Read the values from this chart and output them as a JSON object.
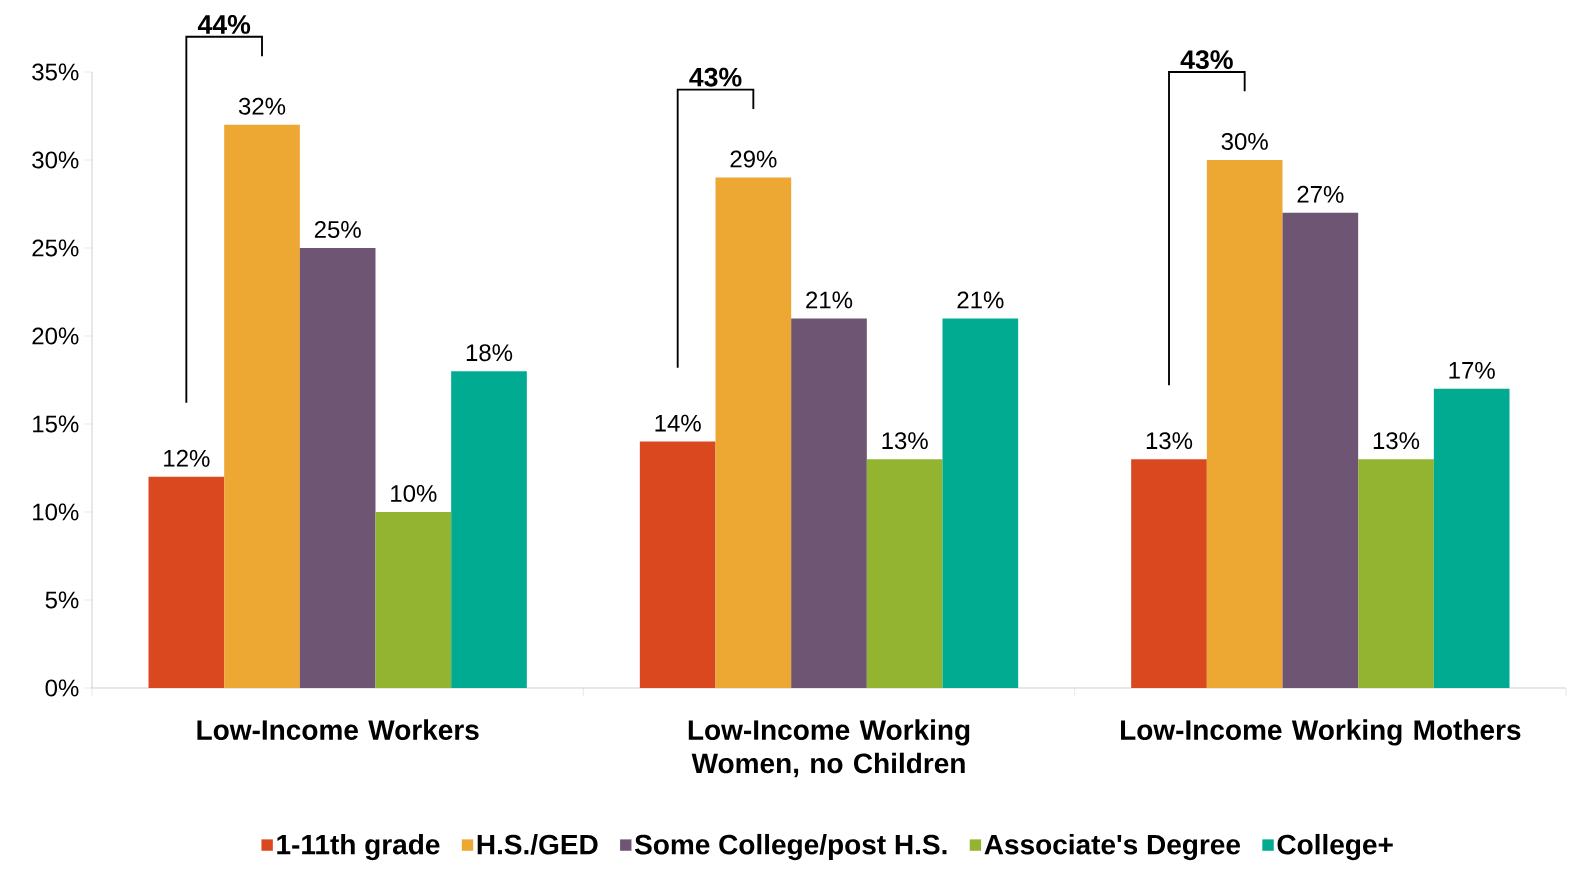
{
  "chart_data": {
    "type": "bar",
    "categories": [
      "Low-Income Workers",
      "Low-Income Working Women, no Children",
      "Low-Income Working Mothers"
    ],
    "series": [
      {
        "name": "1-11th grade",
        "color": "#d9481f",
        "values": [
          12,
          14,
          13
        ],
        "value_labels": [
          "12%",
          "14%",
          "13%"
        ]
      },
      {
        "name": "H.S./GED",
        "color": "#eda733",
        "values": [
          32,
          29,
          30
        ],
        "value_labels": [
          "32%",
          "29%",
          "30%"
        ]
      },
      {
        "name": "Some College/post H.S.",
        "color": "#6e5573",
        "values": [
          25,
          21,
          27
        ],
        "value_labels": [
          "25%",
          "21%",
          "27%"
        ]
      },
      {
        "name": "Associate's Degree",
        "color": "#92b431",
        "values": [
          10,
          13,
          13
        ],
        "value_labels": [
          "10%",
          "13%",
          "13%"
        ]
      },
      {
        "name": "College+",
        "color": "#00ab92",
        "values": [
          18,
          21,
          17
        ],
        "value_labels": [
          "18%",
          "21%",
          "17%"
        ]
      }
    ],
    "ylim": [
      0,
      35
    ],
    "yticks": [
      {
        "value": 0,
        "label": "0%"
      },
      {
        "value": 5,
        "label": "5%"
      },
      {
        "value": 10,
        "label": "10%"
      },
      {
        "value": 15,
        "label": "15%"
      },
      {
        "value": 20,
        "label": "20%"
      },
      {
        "value": 25,
        "label": "25%"
      },
      {
        "value": 30,
        "label": "30%"
      },
      {
        "value": 35,
        "label": "35%"
      }
    ],
    "annotations": [
      "44%",
      "43%",
      "43%"
    ],
    "legend": "bottom",
    "grid": false
  }
}
